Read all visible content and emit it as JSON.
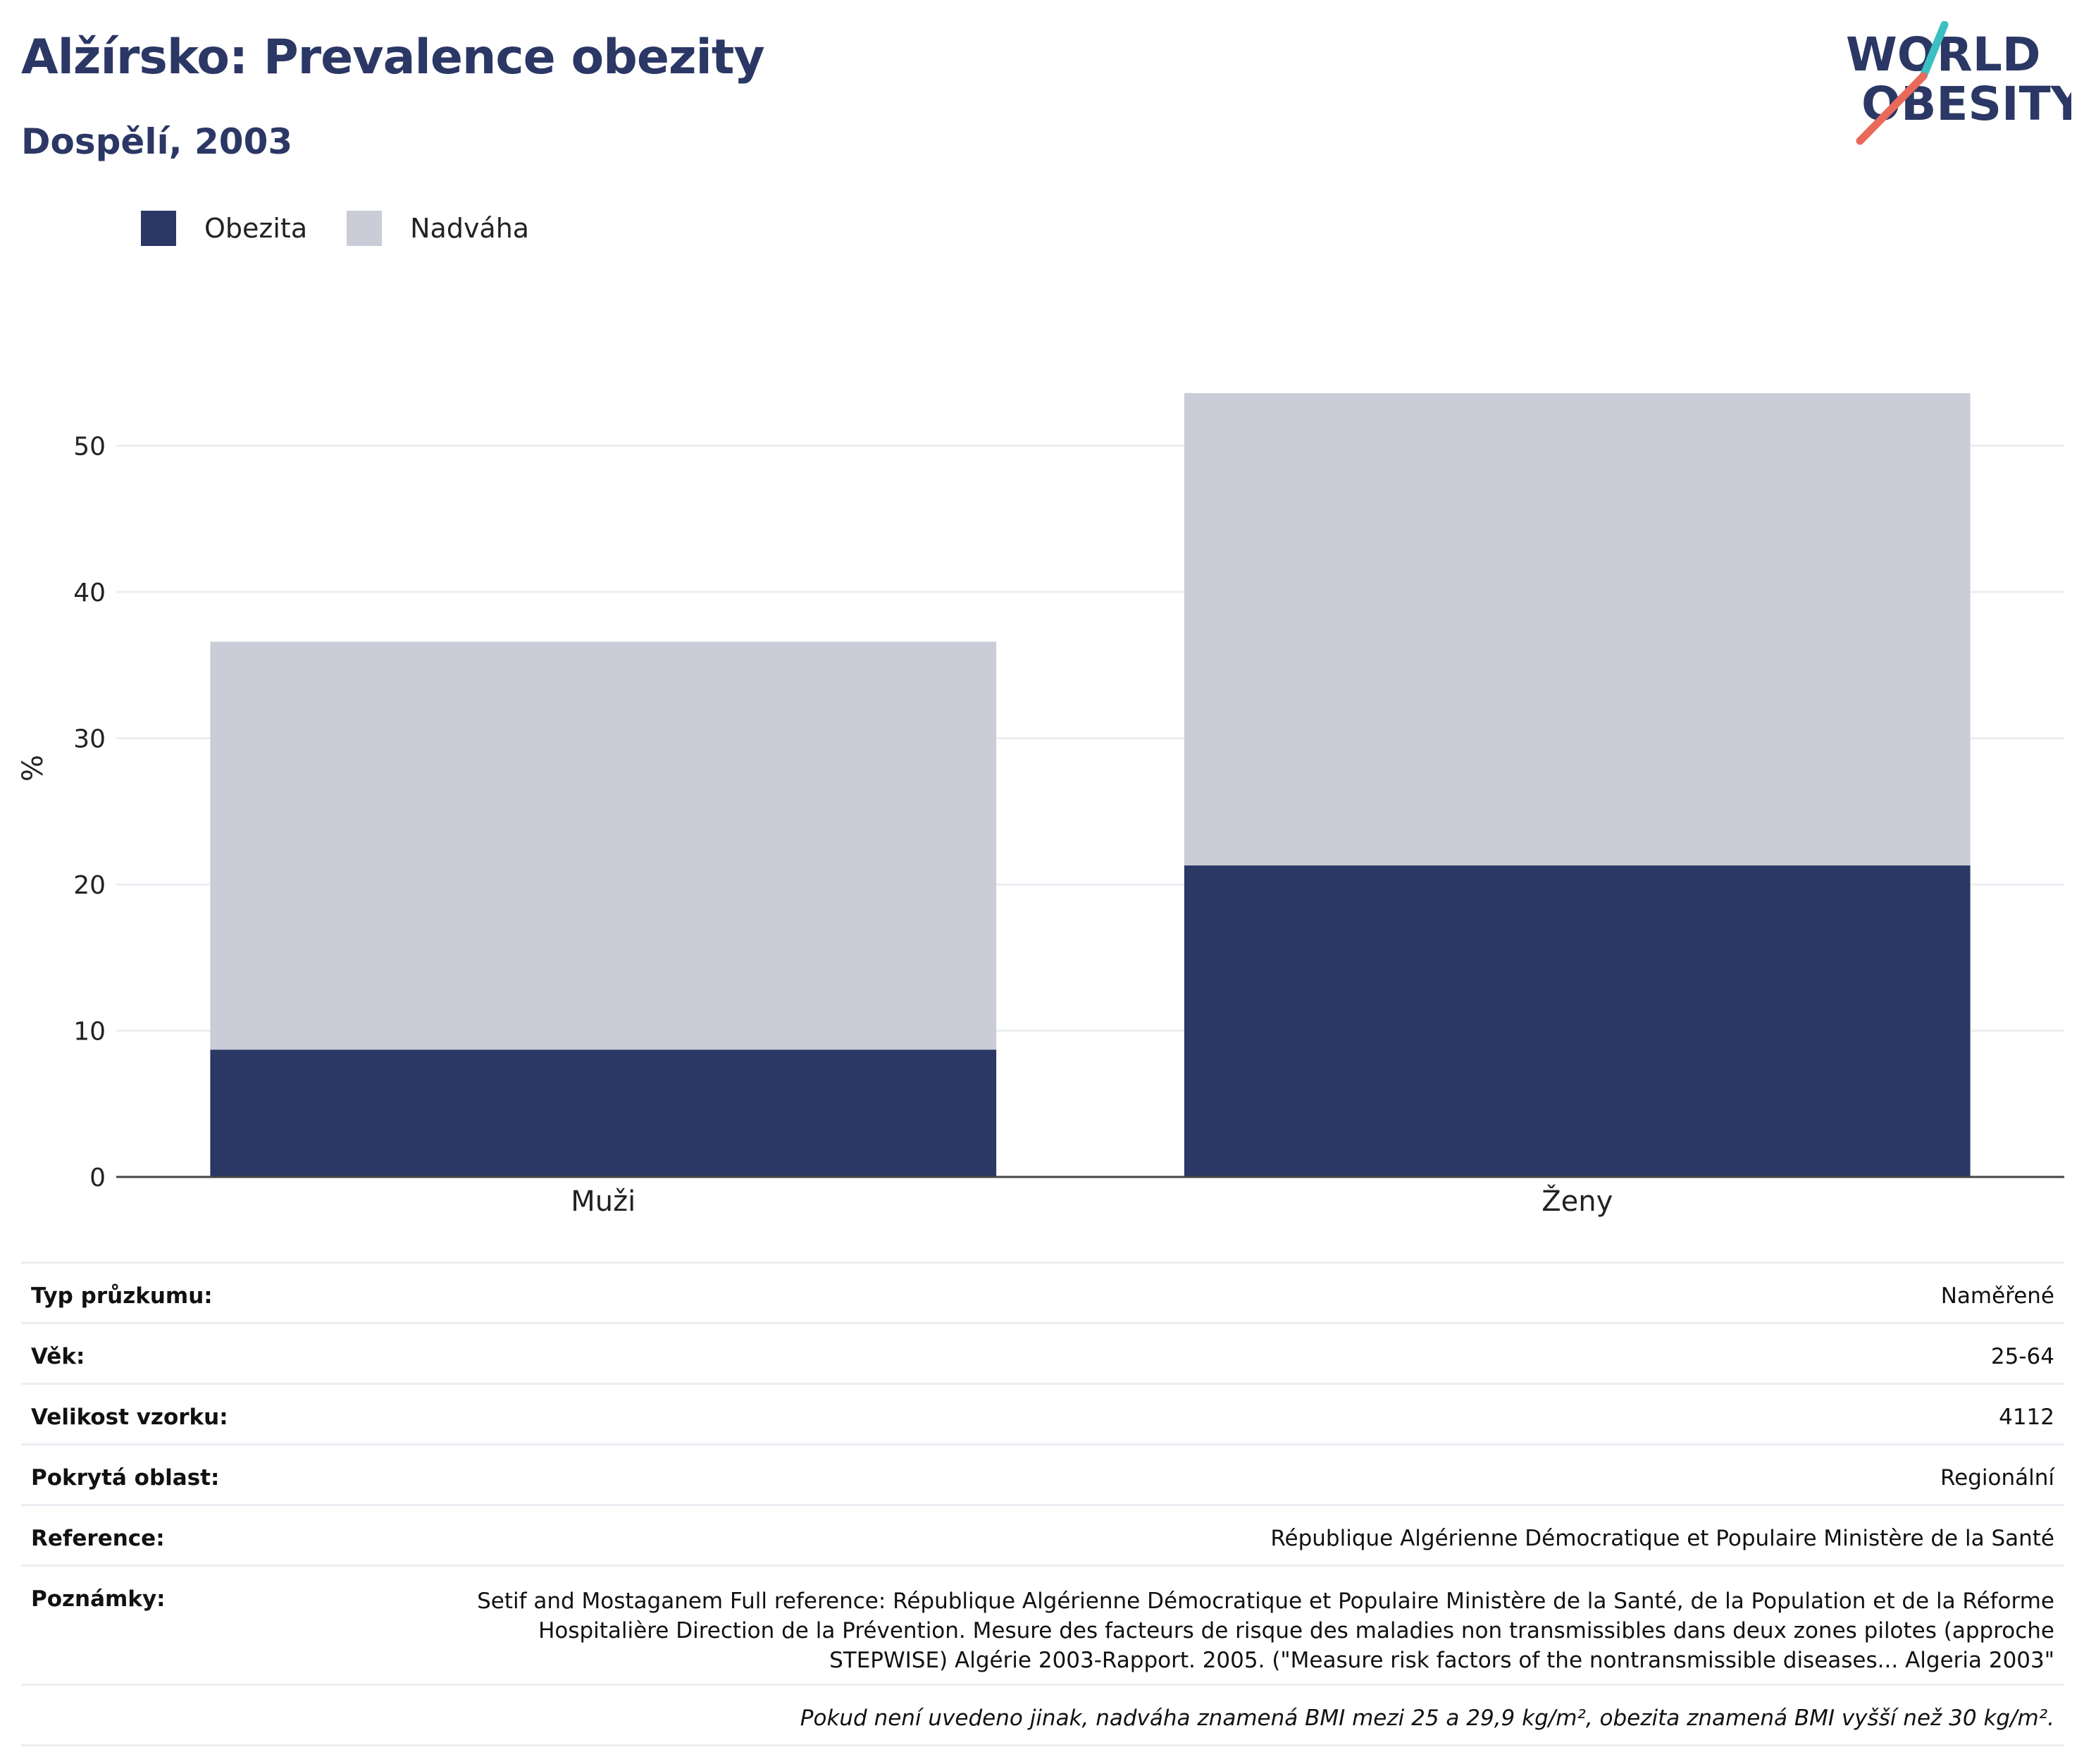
{
  "header": {
    "title": "Alžírsko: Prevalence obezity",
    "subtitle": "Dospělí, 2003"
  },
  "logo": {
    "line1": "WORLD",
    "line2": "OBESITY",
    "accent_teal": "#3cbfc0",
    "accent_red": "#e9695b",
    "text_color": "#2b3764"
  },
  "colors": {
    "obesity": "#2b3764",
    "overweight": "#cacdd8",
    "grid": "#eceef3",
    "axis": "#444444"
  },
  "legend": [
    {
      "label": "Obezita",
      "color": "#2b3764"
    },
    {
      "label": "Nadváha",
      "color": "#cacdd8"
    }
  ],
  "chart_data": {
    "type": "bar",
    "stacked": true,
    "categories": [
      "Muži",
      "Ženy"
    ],
    "series": [
      {
        "name": "Obezita",
        "values": [
          8.7,
          21.3
        ]
      },
      {
        "name": "Nadváha",
        "values": [
          27.9,
          32.3
        ]
      }
    ],
    "ylabel": "%",
    "ylim": [
      0,
      60
    ],
    "yticks": [
      0,
      10,
      20,
      30,
      40,
      50
    ],
    "grid": true,
    "legend_position": "top-left"
  },
  "info": {
    "rows": [
      {
        "key": "Typ průzkumu:",
        "value": "Naměřené"
      },
      {
        "key": "Věk:",
        "value": "25-64"
      },
      {
        "key": "Velikost vzorku:",
        "value": "4112"
      },
      {
        "key": "Pokrytá oblast:",
        "value": "Regionální"
      },
      {
        "key": "Reference:",
        "value": "République Algérienne Démocratique et Populaire Ministère de la Santé"
      }
    ],
    "notes_key": "Poznámky:",
    "notes_value": "Setif and Mostaganem Full reference: République Algérienne Démocratique et Populaire Ministère de la Santé, de la Population et de la Réforme Hospitalière Direction de la Prévention. Mesure des facteurs de risque des maladies non transmissibles dans deux zones pilotes (approche STEPWISE) Algérie 2003-Rapport. 2005. (\"Measure risk factors of the nontransmissible diseases... Algeria 2003\"",
    "footnote": "Pokud není uvedeno jinak, nadváha znamená BMI mezi 25 a 29,9 kg/m², obezita znamená BMI vyšší než 30 kg/m²."
  }
}
